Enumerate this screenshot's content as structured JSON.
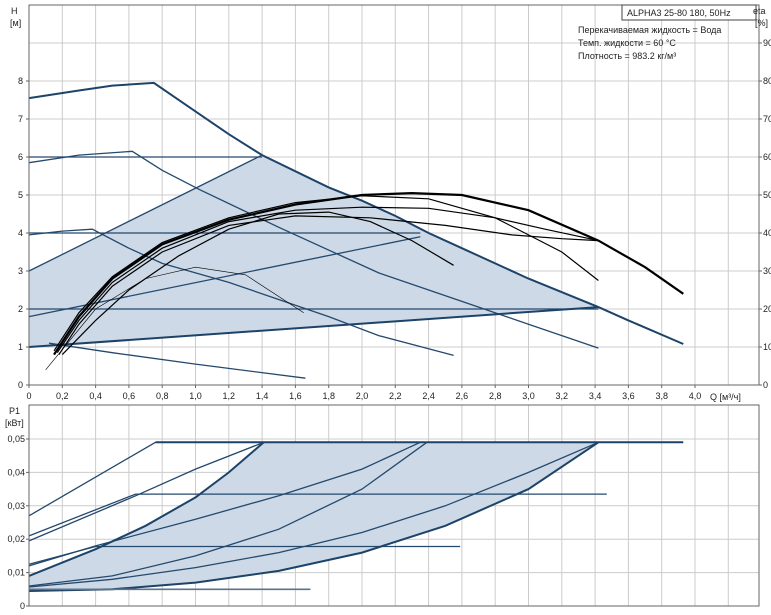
{
  "chart_data": [
    {
      "type": "line",
      "title": "ALPHA3 25-80 180, 50Hz",
      "annotations": [
        "Перекачиваемая жидкость = Вода",
        "Темп. жидкости = 60 °C",
        "Плотность = 983.2 кг/м³"
      ],
      "xlabel": "Q [м³/ч]",
      "ylabel": "H",
      "ylabel_unit": "[м]",
      "y2label": "eta",
      "y2label_unit": "[%]",
      "xlim": [
        0,
        4.4
      ],
      "ylim": [
        0,
        8
      ],
      "y2lim": [
        0,
        80
      ],
      "xticks": [
        "0",
        "0,2",
        "0,4",
        "0,6",
        "0,8",
        "1,0",
        "1,2",
        "1,4",
        "1,6",
        "1,8",
        "2,0",
        "2,2",
        "2,4",
        "2,6",
        "2,8",
        "3,0",
        "3,2",
        "3,4",
        "3,6",
        "3,8",
        "4,0"
      ],
      "yticks": [
        "0",
        "1",
        "2",
        "3",
        "4",
        "5",
        "6",
        "7",
        "8"
      ],
      "y2ticks": [
        "0",
        "10",
        "20",
        "30",
        "40",
        "50",
        "60",
        "70",
        "80",
        "90"
      ],
      "grid": true,
      "colors": {
        "pump_curve": "#24496d",
        "operating_area": "#cdd9e6",
        "efficiency": "#000000",
        "grid": "#cccccc"
      },
      "operating_area": [
        [
          0,
          1.0
        ],
        [
          0,
          3.0
        ],
        [
          1.4,
          6.05
        ],
        [
          1.8,
          5.2
        ],
        [
          2.0,
          4.85
        ],
        [
          2.2,
          4.45
        ],
        [
          2.4,
          4.0
        ],
        [
          2.6,
          3.6
        ],
        [
          3.0,
          2.8
        ],
        [
          3.42,
          2.05
        ],
        [
          0,
          1.0
        ]
      ],
      "head_curves": [
        {
          "points": [
            [
              0,
              7.55
            ],
            [
              0.3,
              7.75
            ],
            [
              0.5,
              7.88
            ],
            [
              0.75,
              7.95
            ],
            [
              1.0,
              7.2
            ],
            [
              1.2,
              6.6
            ],
            [
              1.4,
              6.05
            ],
            [
              1.8,
              5.2
            ],
            [
              2.0,
              4.85
            ],
            [
              2.2,
              4.45
            ],
            [
              2.4,
              4.0
            ],
            [
              2.6,
              3.6
            ],
            [
              3.0,
              2.8
            ],
            [
              3.42,
              2.05
            ],
            [
              3.6,
              1.7
            ],
            [
              3.93,
              1.08
            ]
          ],
          "bold": true
        },
        {
          "points": [
            [
              0,
              5.85
            ],
            [
              0.3,
              6.05
            ],
            [
              0.62,
              6.15
            ],
            [
              0.8,
              5.65
            ],
            [
              1.03,
              5.13
            ],
            [
              1.5,
              4.15
            ],
            [
              2.1,
              2.95
            ],
            [
              2.6,
              2.2
            ],
            [
              3.0,
              1.6
            ],
            [
              3.42,
              0.97
            ]
          ]
        },
        {
          "points": [
            [
              0,
              3.95
            ],
            [
              0.2,
              4.05
            ],
            [
              0.38,
              4.1
            ],
            [
              0.6,
              3.6
            ],
            [
              0.8,
              3.2
            ],
            [
              1.2,
              2.7
            ],
            [
              1.6,
              2.1
            ],
            [
              1.8,
              1.8
            ],
            [
              2.1,
              1.3
            ],
            [
              2.55,
              0.78
            ]
          ]
        },
        {
          "points": [
            [
              0.12,
              1.1
            ],
            [
              0.5,
              0.85
            ],
            [
              1.0,
              0.55
            ],
            [
              1.66,
              0.18
            ]
          ]
        },
        {
          "points": [
            [
              0,
              6.0
            ],
            [
              1.4,
              6.0
            ]
          ]
        },
        {
          "points": [
            [
              0,
              4.0
            ],
            [
              2.35,
              4.0
            ]
          ]
        },
        {
          "points": [
            [
              0,
              2.0
            ],
            [
              3.42,
              2.0
            ]
          ]
        },
        {
          "points": [
            [
              0,
              3.0
            ],
            [
              1.4,
              6.05
            ]
          ]
        },
        {
          "points": [
            [
              0,
              1.8
            ],
            [
              2.35,
              3.9
            ]
          ]
        },
        {
          "points": [
            [
              0,
              1.0
            ],
            [
              3.42,
              2.05
            ]
          ],
          "bold": true
        }
      ],
      "efficiency_curves": [
        {
          "points": [
            [
              0.15,
              8
            ],
            [
              0.3,
              18
            ],
            [
              0.5,
              28
            ],
            [
              0.8,
              37
            ],
            [
              1.2,
              43.5
            ],
            [
              1.6,
              47.5
            ],
            [
              2.0,
              50
            ],
            [
              2.3,
              50.5
            ],
            [
              2.6,
              50
            ],
            [
              3.0,
              46
            ],
            [
              3.42,
              38
            ],
            [
              3.7,
              31
            ],
            [
              3.93,
              24
            ]
          ],
          "bold": true
        },
        {
          "points": [
            [
              0.15,
              9
            ],
            [
              0.3,
              19
            ],
            [
              0.5,
              28.5
            ],
            [
              0.8,
              37.5
            ],
            [
              1.2,
              44
            ],
            [
              1.6,
              48
            ],
            [
              2.0,
              49.8
            ],
            [
              2.4,
              49
            ],
            [
              2.8,
              44
            ],
            [
              3.2,
              35
            ],
            [
              3.42,
              27.5
            ]
          ]
        },
        {
          "points": [
            [
              0.17,
              8.5
            ],
            [
              0.3,
              17
            ],
            [
              0.5,
              27
            ],
            [
              0.8,
              36
            ],
            [
              1.2,
              43
            ],
            [
              1.6,
              46
            ],
            [
              2.0,
              46.8
            ],
            [
              2.4,
              46.5
            ],
            [
              2.8,
              44
            ],
            [
              3.1,
              41
            ],
            [
              3.42,
              38
            ]
          ]
        },
        {
          "points": [
            [
              0.18,
              8
            ],
            [
              0.3,
              16
            ],
            [
              0.5,
              26
            ],
            [
              0.8,
              35
            ],
            [
              1.2,
              42
            ],
            [
              1.6,
              44.5
            ],
            [
              2.05,
              44
            ],
            [
              2.5,
              42
            ],
            [
              2.9,
              39.5
            ],
            [
              3.2,
              38.5
            ],
            [
              3.42,
              38
            ]
          ]
        },
        {
          "points": [
            [
              0.2,
              8
            ],
            [
              0.4,
              17
            ],
            [
              0.6,
              25
            ],
            [
              0.9,
              34
            ],
            [
              1.2,
              41
            ],
            [
              1.5,
              45
            ],
            [
              1.8,
              45.5
            ],
            [
              2.05,
              43
            ],
            [
              2.3,
              38
            ],
            [
              2.55,
              31.5
            ]
          ]
        },
        {
          "points": [
            [
              0.1,
              4
            ],
            [
              0.4,
              20
            ],
            [
              0.7,
              28
            ],
            [
              1.0,
              31
            ],
            [
              1.3,
              29
            ],
            [
              1.65,
              19
            ]
          ],
          "thin": true
        }
      ]
    },
    {
      "type": "line",
      "ylabel": "P1",
      "ylabel_unit": "[кВт]",
      "xlim": [
        0,
        4.4
      ],
      "ylim": [
        0,
        0.05
      ],
      "yticks": [
        "0",
        "0,01",
        "0,02",
        "0,03",
        "0,04",
        "0,05"
      ],
      "grid": true,
      "operating_area": [
        [
          0,
          0.009
        ],
        [
          0.4,
          0.017
        ],
        [
          0.7,
          0.024
        ],
        [
          1.0,
          0.0325
        ],
        [
          1.2,
          0.04
        ],
        [
          1.41,
          0.049
        ],
        [
          3.42,
          0.049
        ],
        [
          3.0,
          0.035
        ],
        [
          2.5,
          0.024
        ],
        [
          2.0,
          0.016
        ],
        [
          1.5,
          0.0105
        ],
        [
          1.0,
          0.007
        ],
        [
          0.5,
          0.005
        ],
        [
          0,
          0.0045
        ]
      ],
      "power_curves": [
        {
          "points": [
            [
              0,
              0.027
            ],
            [
              0.76,
              0.049
            ]
          ]
        },
        {
          "points": [
            [
              0.76,
              0.049
            ],
            [
              3.93,
              0.049
            ]
          ],
          "bold": true
        },
        {
          "points": [
            [
              0,
              0.021
            ],
            [
              0.64,
              0.0335
            ],
            [
              3.47,
              0.0335
            ]
          ]
        },
        {
          "points": [
            [
              0,
              0.0195
            ],
            [
              0.64,
              0.033
            ],
            [
              1.0,
              0.041
            ],
            [
              1.41,
              0.049
            ]
          ]
        },
        {
          "points": [
            [
              0,
              0.0125
            ],
            [
              0.4,
              0.0178
            ],
            [
              2.59,
              0.0178
            ]
          ]
        },
        {
          "points": [
            [
              0,
              0.012
            ],
            [
              0.4,
              0.018
            ],
            [
              1.0,
              0.026
            ],
            [
              1.5,
              0.033
            ],
            [
              2.0,
              0.041
            ],
            [
              2.35,
              0.049
            ]
          ]
        },
        {
          "points": [
            [
              0,
              0.009
            ],
            [
              0.4,
              0.017
            ],
            [
              0.7,
              0.024
            ],
            [
              1.0,
              0.0325
            ],
            [
              1.2,
              0.04
            ],
            [
              1.41,
              0.049
            ]
          ],
          "bold": true
        },
        {
          "points": [
            [
              0,
              0.006
            ],
            [
              0.5,
              0.009
            ],
            [
              1.0,
              0.015
            ],
            [
              1.5,
              0.023
            ],
            [
              2.0,
              0.035
            ],
            [
              2.39,
              0.049
            ]
          ]
        },
        {
          "points": [
            [
              0,
              0.0057
            ],
            [
              0.5,
              0.008
            ],
            [
              1.0,
              0.0115
            ],
            [
              1.5,
              0.016
            ],
            [
              2.0,
              0.022
            ],
            [
              2.5,
              0.03
            ],
            [
              3.0,
              0.04
            ],
            [
              3.42,
              0.049
            ]
          ]
        },
        {
          "points": [
            [
              0,
              0.0045
            ],
            [
              0.5,
              0.005
            ],
            [
              1.0,
              0.007
            ],
            [
              1.5,
              0.0105
            ],
            [
              2.0,
              0.016
            ],
            [
              2.5,
              0.024
            ],
            [
              3.0,
              0.035
            ],
            [
              3.42,
              0.049
            ]
          ],
          "bold": true
        },
        {
          "points": [
            [
              0,
              0.005
            ],
            [
              1.69,
              0.005
            ]
          ],
          "grey": true
        }
      ]
    }
  ]
}
